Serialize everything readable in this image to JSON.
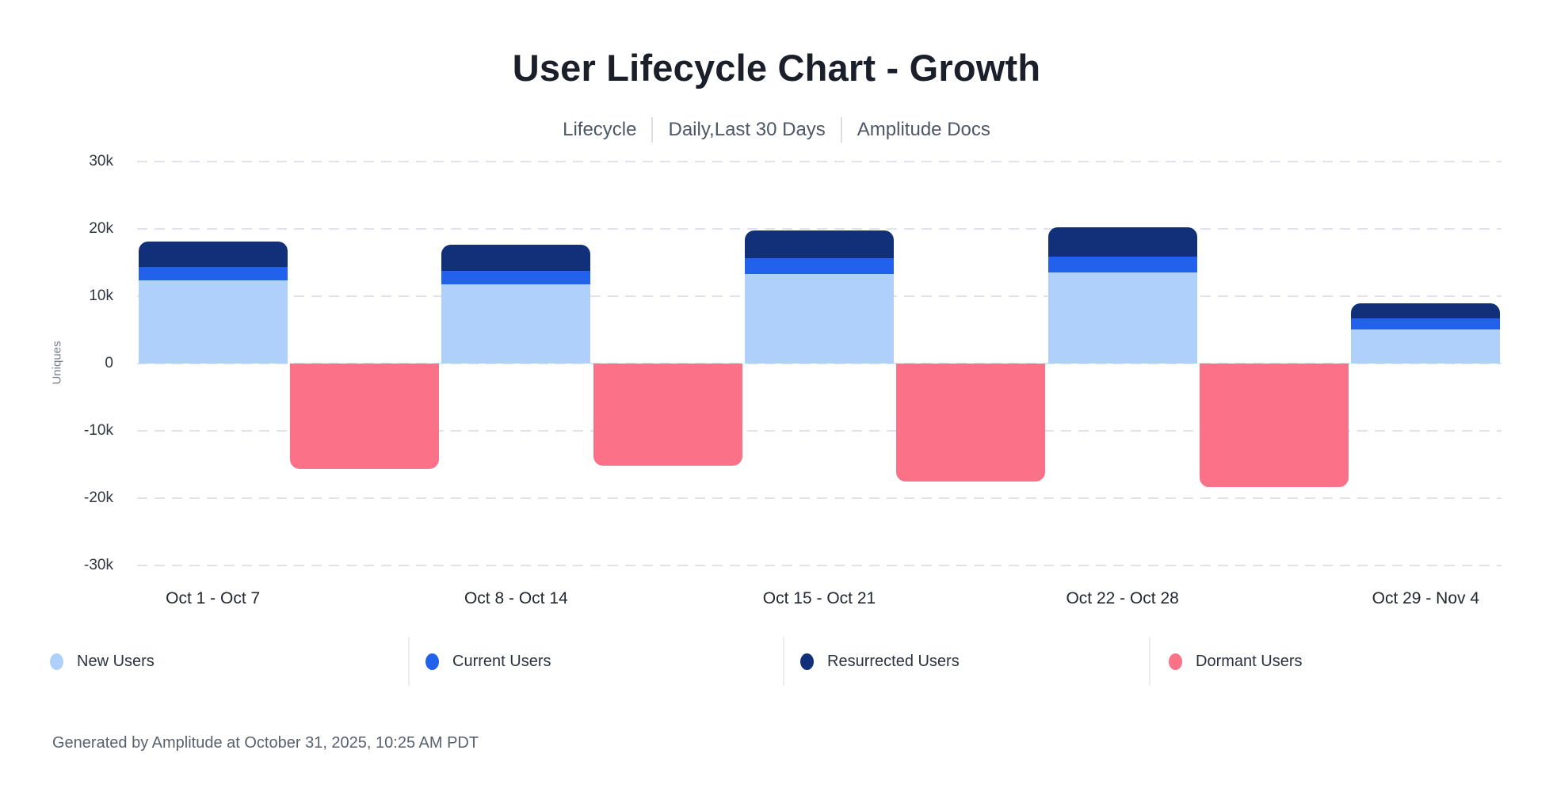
{
  "header": {
    "title": "User Lifecycle Chart - Growth",
    "meta": [
      "Lifecycle",
      "Daily,Last 30 Days",
      "Amplitude Docs"
    ]
  },
  "chart_data": {
    "type": "bar",
    "stacked": true,
    "title": "User Lifecycle Chart - Growth",
    "ylabel": "Uniques",
    "xlabel": "",
    "ylim": [
      -30000,
      30000
    ],
    "grid": "horizontal-dashed",
    "legend_position": "bottom",
    "yticks": [
      {
        "value": 30000,
        "label": "30k"
      },
      {
        "value": 20000,
        "label": "20k"
      },
      {
        "value": 10000,
        "label": "10k"
      },
      {
        "value": 0,
        "label": "0"
      },
      {
        "value": -10000,
        "label": "-10k"
      },
      {
        "value": -20000,
        "label": "-20k"
      },
      {
        "value": -30000,
        "label": "-30k"
      }
    ],
    "categories": [
      "Oct 1 - Oct 7",
      "Oct 8 - Oct 14",
      "Oct 15 - Oct 21",
      "Oct 22 - Oct 28",
      "Oct 29 - Nov 4"
    ],
    "series": [
      {
        "name": "New Users",
        "color": "#AFD0FA",
        "values": [
          12300,
          11800,
          13300,
          13500,
          5100
        ]
      },
      {
        "name": "Current Users",
        "color": "#2161EB",
        "values": [
          2100,
          2000,
          2300,
          2400,
          1600
        ]
      },
      {
        "name": "Resurrected Users",
        "color": "#12307A",
        "values": [
          3700,
          3800,
          4200,
          4300,
          2200
        ]
      },
      {
        "name": "Dormant Users",
        "color": "#FB7188",
        "values": [
          -15700,
          -15200,
          -17500,
          -18300,
          0
        ]
      }
    ]
  },
  "footer": {
    "text": "Generated by Amplitude at October 31, 2025, 10:25 AM PDT"
  }
}
